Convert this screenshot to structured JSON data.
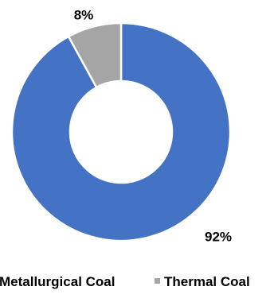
{
  "chart_data": {
    "type": "pie",
    "subtype": "donut",
    "categories": [
      "Metallurgical Coal",
      "Thermal Coal"
    ],
    "values": [
      92,
      8
    ],
    "unit": "%",
    "data_labels": [
      "92%",
      "8%"
    ],
    "colors": [
      "#4472C4",
      "#A5A5A5"
    ],
    "legend": {
      "position": "bottom",
      "entries": [
        "Metallurgical Coal",
        "Thermal Coal"
      ]
    },
    "title": ""
  }
}
